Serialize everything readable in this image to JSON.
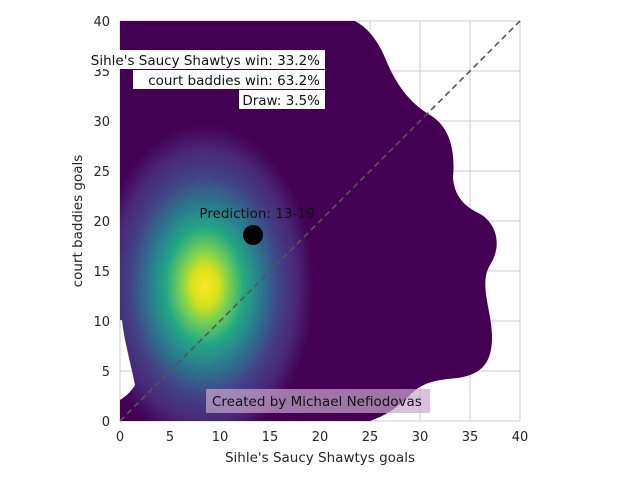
{
  "chart_data": {
    "type": "heatmap",
    "xlabel": "Sihle's Saucy Shawtys goals",
    "ylabel": "court baddies goals",
    "xlim": [
      0,
      40
    ],
    "ylim": [
      0,
      40
    ],
    "xticks": [
      "0",
      "5",
      "10",
      "15",
      "20",
      "25",
      "30",
      "35",
      "40"
    ],
    "yticks": [
      "0",
      "5",
      "10",
      "15",
      "20",
      "25",
      "30",
      "35",
      "40"
    ],
    "grid": true,
    "colormap": "viridis",
    "density_peak": {
      "x": 8.5,
      "y": 13.5
    },
    "prediction": {
      "label": "Prediction: 13-19",
      "x": 13.3,
      "y": 18.6
    },
    "diagonal": {
      "from": [
        0,
        0
      ],
      "to": [
        40,
        40
      ],
      "style": "dashed",
      "color": "#555555"
    },
    "outcomes": [
      {
        "label": "Sihle's Saucy Shawtys win: 33.2%"
      },
      {
        "label": "court baddies win: 63.2%"
      },
      {
        "label": "Draw: 3.5%"
      }
    ],
    "watermark": "Created by Michael Nefiodovas"
  },
  "colors": {
    "grid": "#cccccc",
    "diagonal": "#555555",
    "marker": "#000000",
    "watermark_box": "#c8a8cc",
    "watermark_text": "#b8a0bc"
  }
}
